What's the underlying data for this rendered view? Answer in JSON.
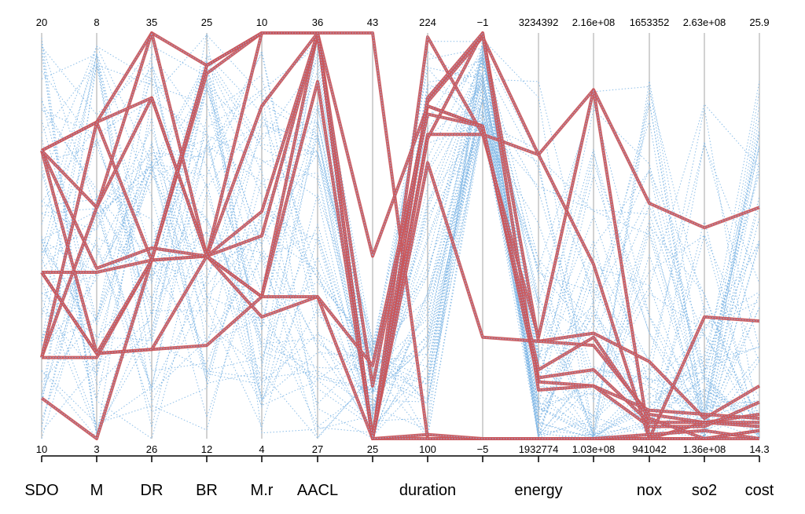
{
  "chart_data": {
    "type": "parallel-coordinates",
    "axes": [
      {
        "name": "SDO",
        "label": "SDO",
        "min": "10",
        "max": "20"
      },
      {
        "name": "M",
        "label": "M",
        "min": "3",
        "max": "8"
      },
      {
        "name": "DR",
        "label": "DR",
        "min": "26",
        "max": "35"
      },
      {
        "name": "BR",
        "label": "BR",
        "min": "12",
        "max": "25"
      },
      {
        "name": "M.r",
        "label": "M.r",
        "min": "4",
        "max": "10"
      },
      {
        "name": "AACL",
        "label": "AACL",
        "min": "27",
        "max": "36"
      },
      {
        "name": "AACL2",
        "label": "",
        "min": "25",
        "max": "43"
      },
      {
        "name": "duration",
        "label": "duration",
        "min": "100",
        "max": "224"
      },
      {
        "name": "dur2",
        "label": "",
        "min": "−5",
        "max": "−1"
      },
      {
        "name": "energy",
        "label": "energy",
        "min": "1932774",
        "max": "3234392"
      },
      {
        "name": "energy2",
        "label": "",
        "min": "1.03e+08",
        "max": "2.16e+08"
      },
      {
        "name": "nox",
        "label": "nox",
        "min": "941042",
        "max": "1653352"
      },
      {
        "name": "so2",
        "label": "so2",
        "min": "1.36e+08",
        "max": "2.63e+08"
      },
      {
        "name": "cost",
        "label": "cost",
        "min": "14.3",
        "max": "25.9"
      }
    ],
    "highlighted_series": [
      [
        0.71,
        0.78,
        1.0,
        0.92,
        1.0,
        1.0,
        1.0,
        0.0,
        0.0,
        0.0,
        0.0,
        0.0,
        0.0,
        0.0
      ],
      [
        0.71,
        0.78,
        0.44,
        0.9,
        1.0,
        1.0,
        0.0,
        0.83,
        0.99,
        0.7,
        0.86,
        0.58,
        0.52,
        0.57
      ],
      [
        0.41,
        0.41,
        0.44,
        0.92,
        1.0,
        1.0,
        0.0,
        0.75,
        0.75,
        0.7,
        0.43,
        0.0,
        0.04,
        0.04
      ],
      [
        0.41,
        0.21,
        0.22,
        0.23,
        0.35,
        1.0,
        0.0,
        0.99,
        0.75,
        0.25,
        0.86,
        0.0,
        0.3,
        0.29
      ],
      [
        0.2,
        0.2,
        0.44,
        0.45,
        0.5,
        1.0,
        0.0,
        0.68,
        0.25,
        0.24,
        0.26,
        0.19,
        0.05,
        0.13
      ],
      [
        0.1,
        0.0,
        0.44,
        0.45,
        0.3,
        0.35,
        0.0,
        0.74,
        1.0,
        0.24,
        0.23,
        0.06,
        0.04,
        0.06
      ],
      [
        0.71,
        0.42,
        0.47,
        0.45,
        0.56,
        1.0,
        0.13,
        0.82,
        0.77,
        0.15,
        0.17,
        0.04,
        0.04,
        0.03
      ],
      [
        0.71,
        0.21,
        0.22,
        0.45,
        0.35,
        0.88,
        0.0,
        0.0,
        0.0,
        0.0,
        0.0,
        0.0,
        0.0,
        0.02
      ],
      [
        0.71,
        0.57,
        0.84,
        0.45,
        1.0,
        1.0,
        0.0,
        0.01,
        0.0,
        0.0,
        0.0,
        0.01,
        0.02,
        0.0
      ],
      [
        0.2,
        0.57,
        1.0,
        0.45,
        0.82,
        1.0,
        0.45,
        0.82,
        0.77,
        0.14,
        0.13,
        0.07,
        0.06,
        0.05
      ],
      [
        0.41,
        0.21,
        0.44,
        0.92,
        1.0,
        1.0,
        0.0,
        0.84,
        1.0,
        0.12,
        0.13,
        0.03,
        0.03,
        0.09
      ],
      [
        0.2,
        0.78,
        0.84,
        0.45,
        0.35,
        0.35,
        0.18,
        0.8,
        0.77,
        0.17,
        0.25,
        0.05,
        0.0,
        0.02
      ]
    ],
    "highlighted_color": "#c9575c",
    "background_color": "#7fb7e6"
  }
}
